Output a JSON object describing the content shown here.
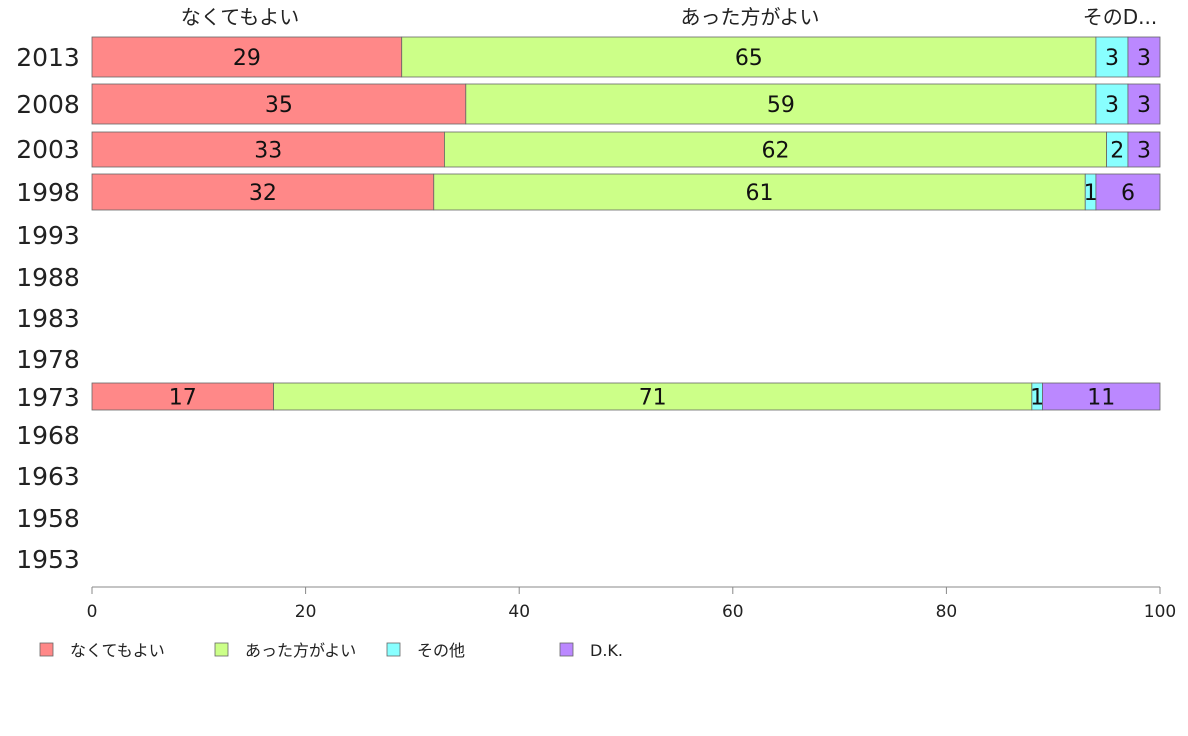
{
  "chart_data": {
    "type": "bar",
    "orientation": "horizontal",
    "stacked": true,
    "categories": [
      "2013",
      "2008",
      "2003",
      "1998",
      "1993",
      "1988",
      "1983",
      "1978",
      "1973",
      "1968",
      "1963",
      "1958",
      "1953"
    ],
    "series": [
      {
        "name": "なくてもよい",
        "color": "#ff8888",
        "values": [
          29,
          35,
          33,
          32,
          null,
          null,
          null,
          null,
          17,
          null,
          null,
          null,
          null
        ]
      },
      {
        "name": "あった方がよい",
        "color": "#ccff88",
        "values": [
          65,
          59,
          62,
          61,
          null,
          null,
          null,
          null,
          71,
          null,
          null,
          null,
          null
        ]
      },
      {
        "name": "その他",
        "color": "#88ffff",
        "values": [
          3,
          3,
          2,
          1,
          null,
          null,
          null,
          null,
          1,
          null,
          null,
          null,
          null
        ]
      },
      {
        "name": "D.K.",
        "color": "#bb88ff",
        "values": [
          3,
          3,
          3,
          6,
          null,
          null,
          null,
          null,
          11,
          null,
          null,
          null,
          null
        ]
      }
    ],
    "column_headers": [
      "なくてもよい",
      "あった方がよい",
      "そのD..."
    ],
    "xlim": [
      0,
      100
    ],
    "xticks": [
      "0",
      "20",
      "40",
      "60",
      "80",
      "100"
    ],
    "legend": [
      "なくてもよい",
      "あった方がよい",
      "その他",
      "D.K."
    ],
    "legend_position": "bottom",
    "grid": false
  }
}
